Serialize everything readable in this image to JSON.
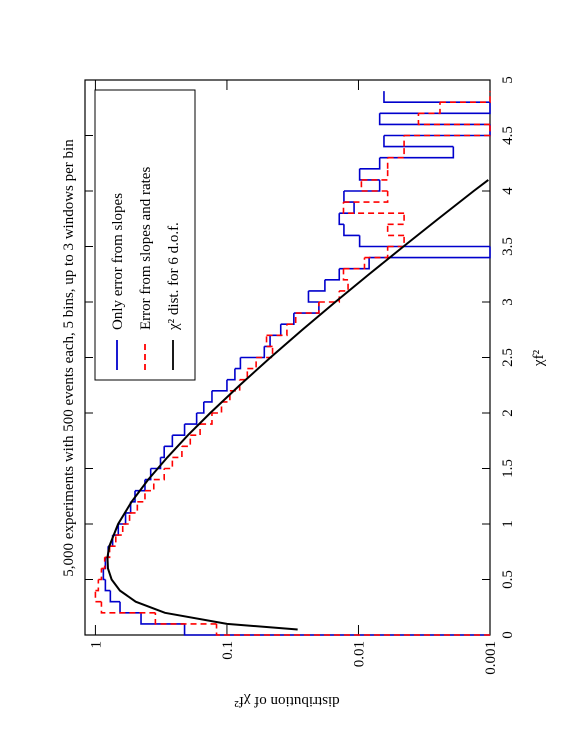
{
  "chart_data": {
    "type": "histogram",
    "title": "5,000 experiments with 500 events each, 5 bins, up to 3 windows per bin",
    "xlabel": "χf²",
    "ylabel": "distribution of χf²",
    "xlim": [
      0,
      5
    ],
    "ylim": [
      0.001,
      1.2
    ],
    "log_y": true,
    "xticks": [
      0,
      0.5,
      1,
      1.5,
      2,
      2.5,
      3,
      3.5,
      4,
      4.5,
      5
    ],
    "yticks": [
      0.001,
      0.01,
      0.1,
      1
    ],
    "legend": "top-right",
    "bins": [
      0,
      0.1,
      0.2,
      0.3,
      0.4,
      0.5,
      0.6,
      0.7,
      0.8,
      0.9,
      1,
      1.1,
      1.2,
      1.3,
      1.4,
      1.5,
      1.6,
      1.7,
      1.8,
      1.9,
      2,
      2.1,
      2.2,
      2.3,
      2.4,
      2.5,
      2.6,
      2.7,
      2.8,
      2.9,
      3,
      3.1,
      3.2,
      3.3,
      3.4,
      3.5,
      3.6,
      3.7,
      3.8,
      3.9,
      4,
      4.1,
      4.2,
      4.3,
      4.4,
      4.5,
      4.6,
      4.7,
      4.8,
      4.9
    ],
    "series": [
      {
        "name": "Only error from slopes",
        "color": "#0000cc",
        "dash": false,
        "values": [
          0.21,
          0.45,
          0.65,
          0.77,
          0.84,
          0.87,
          0.84,
          0.8,
          0.74,
          0.67,
          0.59,
          0.54,
          0.5,
          0.42,
          0.38,
          0.32,
          0.3,
          0.26,
          0.21,
          0.17,
          0.15,
          0.13,
          0.1,
          0.087,
          0.079,
          0.052,
          0.047,
          0.039,
          0.031,
          0.02,
          0.024,
          0.018,
          0.014,
          0.0083,
          0.001,
          0.0098,
          0.0129,
          0.014,
          0.0108,
          0.0129,
          0.0069,
          0.0098,
          0.0069,
          0.0019,
          0.0064,
          0.001,
          0.0069,
          0.001,
          0.0064
        ]
      },
      {
        "name": "Error from slopes and rates",
        "color": "#ff0000",
        "dash": true,
        "values": [
          0.12,
          0.35,
          0.9,
          1.0,
          0.95,
          0.9,
          0.85,
          0.78,
          0.7,
          0.62,
          0.55,
          0.48,
          0.42,
          0.36,
          0.3,
          0.26,
          0.22,
          0.19,
          0.16,
          0.13,
          0.11,
          0.095,
          0.08,
          0.07,
          0.06,
          0.045,
          0.05,
          0.035,
          0.03,
          0.02,
          0.014,
          0.012,
          0.013,
          0.009,
          0.006,
          0.0045,
          0.006,
          0.0045,
          0.013,
          0.006,
          0.0095,
          0.006,
          0.006,
          0.0045,
          0.0045,
          0.001,
          0.0035,
          0.0024,
          0.001
        ]
      }
    ],
    "curve": {
      "name": "χ² dist. for 6 d.o.f.",
      "color": "#000000",
      "x": [
        0.05,
        0.1,
        0.2,
        0.3,
        0.4,
        0.5,
        0.6,
        0.7,
        0.8,
        1.0,
        1.2,
        1.4,
        1.6,
        1.8,
        2.0,
        2.25,
        2.5,
        2.75,
        3.0,
        3.25,
        3.5,
        3.75,
        4.0,
        4.1
      ],
      "values": [
        0.029,
        0.1,
        0.296,
        0.494,
        0.651,
        0.753,
        0.803,
        0.81,
        0.784,
        0.672,
        0.531,
        0.397,
        0.284,
        0.198,
        0.134,
        0.08,
        0.0467,
        0.0267,
        0.015,
        0.00831,
        0.00455,
        0.00247,
        0.00133,
        0.00103
      ]
    }
  }
}
